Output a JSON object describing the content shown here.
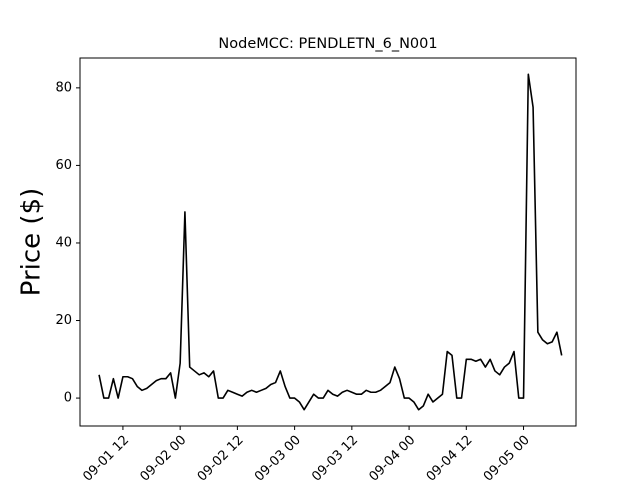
{
  "chart_data": {
    "type": "line",
    "title": "NodeMCC: PENDLETN_6_N001",
    "y_label": "Price ($)",
    "x": [
      "09-01 07",
      "09-01 08",
      "09-01 09",
      "09-01 10",
      "09-01 11",
      "09-01 12",
      "09-01 13",
      "09-01 14",
      "09-01 15",
      "09-01 16",
      "09-01 17",
      "09-01 18",
      "09-01 19",
      "09-01 20",
      "09-01 21",
      "09-01 22",
      "09-01 23",
      "09-02 00",
      "09-02 01",
      "09-02 02",
      "09-02 03",
      "09-02 04",
      "09-02 05",
      "09-02 06",
      "09-02 07",
      "09-02 08",
      "09-02 09",
      "09-02 10",
      "09-02 11",
      "09-02 12",
      "09-02 13",
      "09-02 14",
      "09-02 15",
      "09-02 16",
      "09-02 17",
      "09-02 18",
      "09-02 19",
      "09-02 20",
      "09-02 21",
      "09-02 22",
      "09-02 23",
      "09-03 00",
      "09-03 01",
      "09-03 02",
      "09-03 03",
      "09-03 04",
      "09-03 05",
      "09-03 06",
      "09-03 07",
      "09-03 08",
      "09-03 09",
      "09-03 10",
      "09-03 11",
      "09-03 12",
      "09-03 13",
      "09-03 14",
      "09-03 15",
      "09-03 16",
      "09-03 17",
      "09-03 18",
      "09-03 19",
      "09-03 20",
      "09-03 21",
      "09-03 22",
      "09-03 23",
      "09-04 00",
      "09-04 01",
      "09-04 02",
      "09-04 03",
      "09-04 04",
      "09-04 05",
      "09-04 06",
      "09-04 07",
      "09-04 08",
      "09-04 09",
      "09-04 10",
      "09-04 11",
      "09-04 12",
      "09-04 13",
      "09-04 14",
      "09-04 15",
      "09-04 16",
      "09-04 17",
      "09-04 18",
      "09-04 19",
      "09-04 20",
      "09-04 21",
      "09-04 22",
      "09-04 23",
      "09-05 00",
      "09-05 01",
      "09-05 02",
      "09-05 03",
      "09-05 04",
      "09-05 05",
      "09-05 06",
      "09-05 07",
      "09-05 08"
    ],
    "series": [
      {
        "color": "#000000",
        "values": [
          6,
          0,
          0,
          5,
          0,
          5.5,
          5.5,
          5,
          3,
          2,
          2.5,
          3.5,
          4.5,
          5,
          5,
          6.5,
          0,
          9,
          48,
          8,
          7,
          6,
          6.5,
          5.5,
          7,
          0,
          0,
          2,
          1.5,
          1,
          0.5,
          1.5,
          2,
          1.5,
          2,
          2.5,
          3.5,
          4,
          7,
          3,
          0,
          0,
          -1,
          -3,
          -1,
          1,
          0,
          0,
          2,
          1,
          0.5,
          1.5,
          2,
          1.5,
          1,
          1,
          2,
          1.5,
          1.5,
          2,
          3,
          4,
          8,
          5,
          0,
          0,
          -1,
          -3,
          -2,
          1,
          -1,
          0,
          1,
          12,
          11,
          0,
          0,
          10,
          10,
          9.5,
          10,
          8,
          10,
          7,
          6,
          8,
          9,
          12,
          0,
          0,
          83.5,
          75,
          17,
          15,
          14,
          14.5,
          17,
          11
        ]
      }
    ],
    "xlim": [
      "09-01 03",
      "09-05 11"
    ],
    "xticks": [
      "09-01 12",
      "09-02 00",
      "09-02 12",
      "09-03 00",
      "09-03 12",
      "09-04 00",
      "09-04 12",
      "09-05 00"
    ],
    "ylim": [
      -7.2,
      87.7
    ],
    "yticks": [
      0,
      20,
      40,
      60,
      80
    ]
  }
}
